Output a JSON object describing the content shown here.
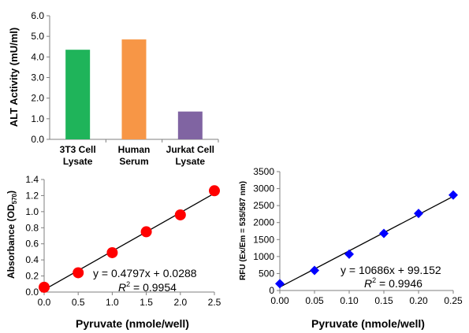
{
  "chart_data": [
    {
      "type": "bar",
      "ylabel": "ALT Activity (mU/ml)",
      "ylim": [
        0,
        6
      ],
      "yticks": [
        "0.0",
        "1.0",
        "2.0",
        "3.0",
        "4.0",
        "5.0",
        "6.0"
      ],
      "categories": [
        [
          "3T3 Cell",
          "Lysate"
        ],
        [
          "Human",
          "Serum"
        ],
        [
          "Jurkat Cell",
          "Lysate"
        ]
      ],
      "values": [
        4.35,
        4.85,
        1.35
      ],
      "colors": [
        "#1fb45a",
        "#f79646",
        "#8064a2"
      ],
      "grid": false
    },
    {
      "type": "scatter",
      "xlabel": "Pyruvate (nmole/well)",
      "ylabel_main": "Absorbance (OD",
      "ylabel_sub": "570",
      "ylabel_close": ")",
      "xlim": [
        0,
        2.5
      ],
      "ylim": [
        0,
        1.4
      ],
      "xticks": [
        "0.0",
        "0.5",
        "1.0",
        "1.5",
        "2.0",
        "2.5"
      ],
      "yticks": [
        "0.0",
        "0.2",
        "0.4",
        "0.6",
        "0.8",
        "1.0",
        "1.2",
        "1.4"
      ],
      "x": [
        0,
        0.5,
        1.0,
        1.5,
        2.0,
        2.5
      ],
      "y": [
        0.06,
        0.24,
        0.49,
        0.75,
        0.96,
        1.26
      ],
      "marker": "circle",
      "marker_color": "#ff0000",
      "trendline": {
        "slope": 0.4797,
        "intercept": 0.0288
      },
      "equation": "y = 0.4797x + 0.0288",
      "r2_label": "R",
      "r2_sup": "2",
      "r2_value": " = 0.9954",
      "grid": false
    },
    {
      "type": "scatter",
      "xlabel": "Pyruvate (nmole/well)",
      "ylabel": "RFU (Ex/Em = 535/587 nm)",
      "xlim": [
        0,
        0.25
      ],
      "ylim": [
        0,
        3500
      ],
      "xticks": [
        "0.00",
        "0.05",
        "0.10",
        "0.15",
        "0.20",
        "0.25"
      ],
      "yticks": [
        "0",
        "500",
        "1000",
        "1500",
        "2000",
        "2500",
        "3000",
        "3500"
      ],
      "x": [
        0,
        0.05,
        0.1,
        0.15,
        0.2,
        0.25
      ],
      "y": [
        200,
        590,
        1070,
        1680,
        2270,
        2810
      ],
      "marker": "diamond",
      "marker_color": "#0000ff",
      "trendline": {
        "slope": 10686,
        "intercept": 99.152
      },
      "equation": "y = 10686x + 99.152",
      "r2_label": "R",
      "r2_sup": "2",
      "r2_value": " = 0.9946",
      "grid": false
    }
  ]
}
